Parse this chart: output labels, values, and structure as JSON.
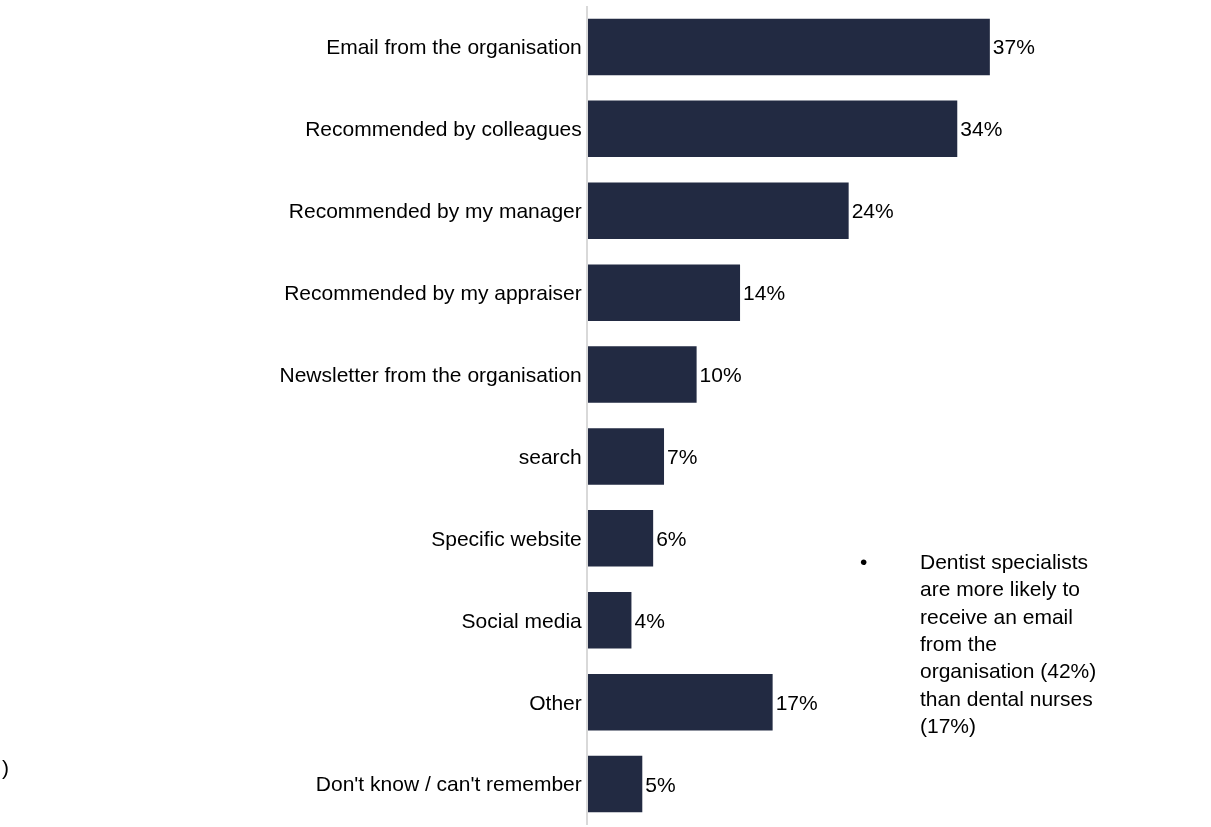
{
  "chart_data": {
    "type": "bar",
    "orientation": "horizontal",
    "categories": [
      "Email from the organisation",
      "Recommended by colleagues",
      "Recommended by my manager",
      "Recommended by my appraiser",
      "Newsletter from the organisation",
      "search",
      "Specific website",
      "Social media",
      "Other",
      "Don't know / can't remember"
    ],
    "values": [
      37,
      34,
      24,
      14,
      10,
      7,
      6,
      4,
      17,
      5
    ],
    "value_labels": [
      "37%",
      "34%",
      "24%",
      "14%",
      "10%",
      "7%",
      "6%",
      "4%",
      "17%",
      "5%"
    ],
    "color": "#222a42",
    "tick_labels": "y",
    "legend": false,
    "annotations": [
      "• Dentist specialists are more likely to receive an email from the organisation (42%) than dental nurses (17%)",
      ")"
    ]
  }
}
